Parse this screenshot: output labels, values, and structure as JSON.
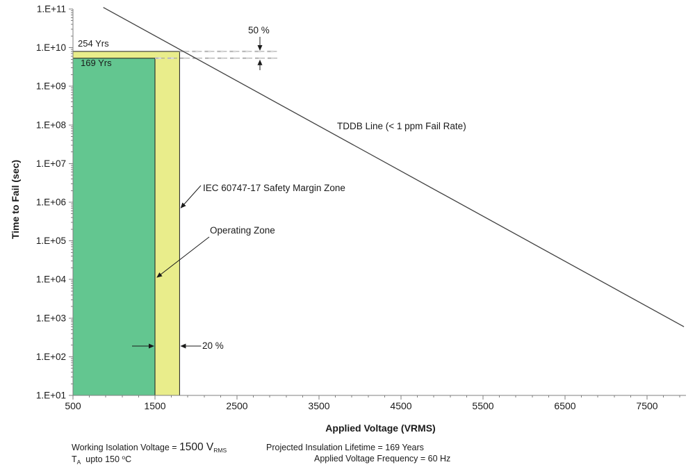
{
  "chart_data": {
    "type": "line",
    "title": "",
    "xlabel": "Applied Voltage (VRMS)",
    "ylabel": "Time to Fail (sec)",
    "x_axis": {
      "min": 500,
      "max": 8000,
      "major_ticks": [
        500,
        1500,
        2500,
        3500,
        4500,
        5500,
        6500,
        7500
      ],
      "tick_labels": [
        "500",
        "1500",
        "2500",
        "3500",
        "4500",
        "5500",
        "6500",
        "7500"
      ],
      "minor_step": 200
    },
    "y_axis": {
      "scale": "log",
      "min": 10,
      "max": 100000000000,
      "tick_exponents": [
        1,
        2,
        3,
        4,
        5,
        6,
        7,
        8,
        9,
        10,
        11
      ],
      "tick_labels": [
        "1.E+01",
        "1.E+02",
        "1.E+03",
        "1.E+04",
        "1.E+05",
        "1.E+06",
        "1.E+07",
        "1.E+08",
        "1.E+09",
        "1.E+10",
        "1.E+11"
      ]
    },
    "grid": false,
    "legend": "none",
    "tddb_line": {
      "label": "TDDB Line (< 1 ppm Fail Rate)",
      "color": "#404040",
      "points": [
        {
          "v": 870,
          "t": 110000000000.0
        },
        {
          "v": 7950,
          "t": 600
        }
      ]
    },
    "zones": [
      {
        "name": "safety_margin",
        "label": "IEC 60747-17 Safety Margin Zone",
        "v_min": 500,
        "v_max": 1800,
        "t_min": 10,
        "t_max": 8000000000.0,
        "lifetime_label": "254 Yrs",
        "color": "#e9ed8b",
        "border": "#1a1a1a"
      },
      {
        "name": "operating",
        "label": "Operating Zone",
        "v_min": 500,
        "v_max": 1500,
        "t_min": 10,
        "t_max": 5330000000.0,
        "lifetime_label": "169 Yrs",
        "color": "#63c690",
        "border": "#1a1a1a"
      }
    ],
    "annotations": {
      "lifetime_254": "254 Yrs",
      "lifetime_169": "169 Yrs",
      "margin_50": "50 %",
      "margin_20": "20 %",
      "tddb_label": "TDDB Line (< 1 ppm Fail Rate)",
      "safety_zone_label": "IEC 60747-17 Safety Margin Zone",
      "operating_zone_label": "Operating Zone"
    },
    "colors": {
      "axis": "#7f7f7f",
      "dashed_guide": "#9a9a9a",
      "dashed_guide_light": "#d8d8d8",
      "arrow": "#1a1a1a"
    }
  },
  "footnotes": {
    "working_voltage_prefix": "Working Isolation Voltage =",
    "working_voltage_value": "1500 V",
    "working_voltage_sub": "RMS",
    "ambient_t": "T",
    "ambient_t_sub": "A",
    "ambient_rest": "upto 150",
    "ambient_deg": "o",
    "ambient_unit": "C",
    "lifetime": "Projected Insulation Lifetime = 169 Years",
    "frequency": "Applied Voltage Frequency = 60 Hz"
  }
}
